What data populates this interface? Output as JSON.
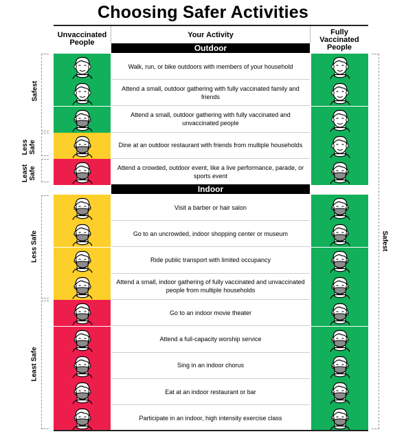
{
  "title": "Choosing Safer Activities",
  "headers": {
    "left": "Unvaccinated People",
    "middle": "Your Activity",
    "right": "Fully Vaccinated People"
  },
  "sections": {
    "outdoor": "Outdoor",
    "indoor": "Indoor"
  },
  "colors": {
    "green": "#12b05a",
    "yellow": "#fdcf2a",
    "red": "#ee1e4c",
    "mask": "#8c8c8c"
  },
  "left_labels": {
    "outdoor_safest": "Safest",
    "outdoor_less_safe": "Less Safe",
    "outdoor_least_safe": "Least Safe",
    "indoor_less_safe": "Less Safe",
    "indoor_least_safe": "Least Safe"
  },
  "right_label": "Safest",
  "outdoor_rows": [
    {
      "activity": "Walk, run, or bike outdoors with members of your household",
      "left": "green",
      "left_mask": false,
      "right": "green",
      "right_mask": false
    },
    {
      "activity": "Attend a small, outdoor gathering with fully vaccinated family and friends",
      "left": "green",
      "left_mask": false,
      "right": "green",
      "right_mask": false
    },
    {
      "activity": "Attend a small, outdoor gathering with fully vaccinated and unvaccinated people",
      "left": "green",
      "left_mask": true,
      "right": "green",
      "right_mask": false
    },
    {
      "activity": "Dine at an outdoor restaurant with friends from multiple households",
      "left": "yellow",
      "left_mask": true,
      "right": "green",
      "right_mask": false
    },
    {
      "activity": "Attend a crowded, outdoor event, like a live performance, parade, or sports event",
      "left": "red",
      "left_mask": true,
      "right": "green",
      "right_mask": true
    }
  ],
  "indoor_rows": [
    {
      "activity": "Visit a barber or hair salon",
      "left": "yellow",
      "left_mask": true,
      "right": "green",
      "right_mask": true
    },
    {
      "activity": "Go to an uncrowded, indoor shopping center or museum",
      "left": "yellow",
      "left_mask": true,
      "right": "green",
      "right_mask": true
    },
    {
      "activity": "Ride public transport with limited occupancy",
      "left": "yellow",
      "left_mask": true,
      "right": "green",
      "right_mask": true
    },
    {
      "activity": "Attend a small, indoor gathering of fully vaccinated and unvaccinated people from multiple households",
      "left": "yellow",
      "left_mask": true,
      "right": "green",
      "right_mask": true
    },
    {
      "activity": "Go to an indoor movie theater",
      "left": "red",
      "left_mask": true,
      "right": "green",
      "right_mask": true
    },
    {
      "activity": "Attend a full-capacity worship service",
      "left": "red",
      "left_mask": true,
      "right": "green",
      "right_mask": true
    },
    {
      "activity": "Sing in an indoor chorus",
      "left": "red",
      "left_mask": true,
      "right": "green",
      "right_mask": true
    },
    {
      "activity": "Eat at an indoor restaurant or bar",
      "left": "red",
      "left_mask": true,
      "right": "green",
      "right_mask": true
    },
    {
      "activity": "Participate in an indoor, high intensity exercise class",
      "left": "red",
      "left_mask": true,
      "right": "green",
      "right_mask": true
    }
  ]
}
